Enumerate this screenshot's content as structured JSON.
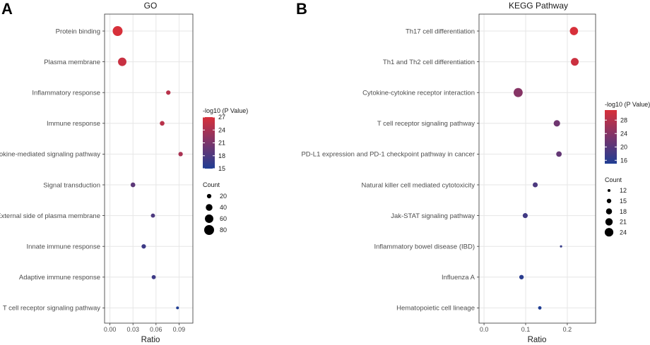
{
  "chart_data": [
    {
      "panel_label": "A",
      "type": "scatter",
      "title": "GO",
      "xlabel": "Ratio",
      "ylabel": "",
      "xlim": [
        -0.007,
        0.108
      ],
      "xticks": [
        0.0,
        0.03,
        0.06,
        0.09
      ],
      "xtick_labels": [
        "0.00",
        "0.03",
        "0.06",
        "0.09"
      ],
      "categories": [
        "Protein binding",
        "Plasma membrane",
        "Inflammatory response",
        "Immune response",
        "Cytokine-mediated signaling pathway",
        "Signal transduction",
        "External side of plasma membrane",
        "Innate immune response",
        "Adaptive immune response",
        "T cell receptor signaling pathway"
      ],
      "ratio": [
        0.01,
        0.016,
        0.076,
        0.068,
        0.092,
        0.03,
        0.056,
        0.044,
        0.057,
        0.088
      ],
      "neg_log10_p": [
        27,
        26,
        25,
        25,
        24,
        19,
        18,
        17,
        17,
        15
      ],
      "count": [
        80,
        60,
        20,
        22,
        20,
        22,
        18,
        20,
        18,
        10
      ],
      "color_legend": {
        "title": "-log10 (P Value)",
        "ticks": [
          27,
          24,
          21,
          18,
          15
        ],
        "range": [
          15,
          27
        ],
        "colors": [
          "#1f3d93",
          "#d7303a"
        ]
      },
      "size_legend": {
        "title": "Count",
        "values": [
          20,
          40,
          60,
          80
        ]
      },
      "grid": true
    },
    {
      "panel_label": "B",
      "type": "scatter",
      "title": "KEGG Pathway",
      "xlabel": "Ratio",
      "ylabel": "",
      "xlim": [
        -0.012,
        0.268
      ],
      "xticks": [
        0.0,
        0.1,
        0.2
      ],
      "xtick_labels": [
        "0.0",
        "0.1",
        "0.2"
      ],
      "categories": [
        "Th17 cell differentiation",
        "Th1 and Th2 cell differentiation",
        "Cytokine-cytokine receptor interaction",
        "T cell receptor signaling pathway",
        "PD-L1 expression and PD-1 checkpoint pathway in cancer",
        "Natural killer cell mediated cytotoxicity",
        "Jak-STAT signaling pathway",
        "Inflammatory bowel disease (IBD)",
        "Influenza A",
        "Hematopoietic cell lineage"
      ],
      "ratio": [
        0.216,
        0.218,
        0.082,
        0.175,
        0.18,
        0.123,
        0.099,
        0.185,
        0.09,
        0.134
      ],
      "neg_log10_p": [
        31,
        30,
        24,
        22,
        21,
        19,
        18,
        17,
        16,
        15
      ],
      "count": [
        23,
        22,
        25,
        19,
        17,
        16,
        16,
        11,
        15,
        13
      ],
      "color_legend": {
        "title": "-log10 (P Value)",
        "ticks": [
          28,
          24,
          20,
          16
        ],
        "range": [
          15,
          31
        ],
        "colors": [
          "#1f3d93",
          "#d7303a"
        ]
      },
      "size_legend": {
        "title": "Count",
        "values": [
          12,
          15,
          18,
          21,
          24
        ]
      },
      "grid": true
    }
  ]
}
